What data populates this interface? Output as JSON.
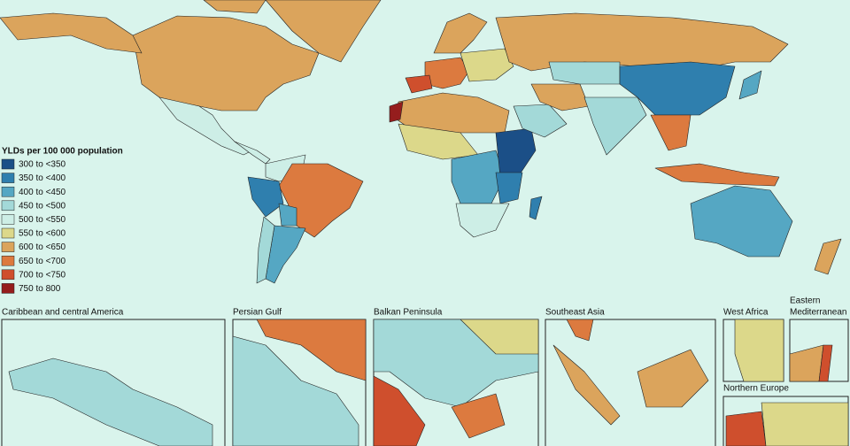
{
  "legend": {
    "title": "YLDs per 100 000 population",
    "items": [
      {
        "label": "300 to <350",
        "color": "#1b4f87"
      },
      {
        "label": "350 to <400",
        "color": "#2f7fae"
      },
      {
        "label": "400 to <450",
        "color": "#55a7c3"
      },
      {
        "label": "450 to <500",
        "color": "#a3d9d8"
      },
      {
        "label": "500 to <550",
        "color": "#cdeee6"
      },
      {
        "label": "550 to <600",
        "color": "#dcd88a"
      },
      {
        "label": "600 to <650",
        "color": "#dba45c"
      },
      {
        "label": "650 to <700",
        "color": "#dc7a3f"
      },
      {
        "label": "700 to <750",
        "color": "#cf4f2d"
      },
      {
        "label": "750 to 800",
        "color": "#951d1d"
      }
    ]
  },
  "insets": [
    {
      "title": "Caribbean and central America"
    },
    {
      "title": "Persian Gulf"
    },
    {
      "title": "Balkan Peninsula"
    },
    {
      "title": "Southeast Asia"
    },
    {
      "title": "West Africa"
    },
    {
      "title": [
        "Eastern",
        "Mediterranean"
      ]
    },
    {
      "title": "Northern Europe"
    }
  ]
}
